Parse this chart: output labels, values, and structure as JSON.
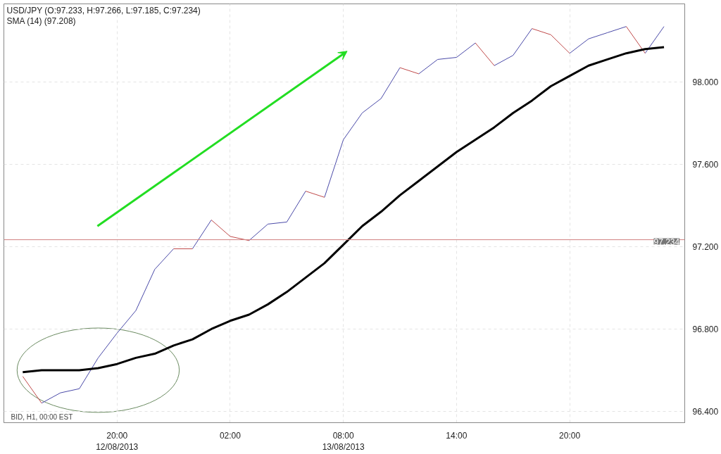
{
  "chart_data": {
    "type": "line",
    "annotations": [
      "USD/JPY (O:97.233, H:97.266, L:97.185, C:97.234)",
      "SMA (14) (97.208)",
      "BID, H1, 00:00 EST"
    ],
    "x": [
      "2013-08-12T15:00",
      "2013-08-12T16:00",
      "2013-08-12T17:00",
      "2013-08-12T18:00",
      "2013-08-12T19:00",
      "2013-08-12T20:00",
      "2013-08-12T21:00",
      "2013-08-12T22:00",
      "2013-08-12T23:00",
      "2013-08-13T00:00",
      "2013-08-13T01:00",
      "2013-08-13T02:00",
      "2013-08-13T03:00",
      "2013-08-13T04:00",
      "2013-08-13T05:00",
      "2013-08-13T06:00",
      "2013-08-13T07:00",
      "2013-08-13T08:00",
      "2013-08-13T09:00",
      "2013-08-13T10:00",
      "2013-08-13T11:00",
      "2013-08-13T12:00",
      "2013-08-13T13:00",
      "2013-08-13T14:00",
      "2013-08-13T15:00",
      "2013-08-13T16:00",
      "2013-08-13T17:00",
      "2013-08-13T18:00",
      "2013-08-13T19:00",
      "2013-08-13T20:00",
      "2013-08-13T21:00",
      "2013-08-13T22:00",
      "2013-08-13T23:00",
      "2013-08-14T00:00",
      "2013-08-14T01:00"
    ],
    "series": [
      {
        "color": "#4a4aa8",
        "x": [
          "2013-08-12T16:00",
          "2013-08-12T17:00",
          "2013-08-12T18:00",
          "2013-08-12T19:00",
          "2013-08-12T20:00",
          "2013-08-12T21:00",
          "2013-08-12T22:00",
          "2013-08-12T23:00",
          "2013-08-12T23:30",
          "2013-08-13T00:00",
          "2013-08-13T01:00",
          "2013-08-13T01:30",
          "2013-08-13T03:00",
          "2013-08-13T04:00",
          "2013-08-13T05:00",
          "2013-08-13T06:00",
          "2013-08-13T06:30",
          "2013-08-13T07:00",
          "2013-08-13T08:00",
          "2013-08-13T09:00",
          "2013-08-13T10:00",
          "2013-08-13T11:00",
          "2013-08-13T11:30",
          "2013-08-13T12:00",
          "2013-08-13T13:00",
          "2013-08-13T14:00",
          "2013-08-13T15:00",
          "2013-08-13T15:30",
          "2013-08-13T16:00",
          "2013-08-13T17:00",
          "2013-08-13T18:00",
          "2013-08-13T18:30",
          "2013-08-13T20:00",
          "2013-08-13T21:00",
          "2013-08-13T22:00",
          "2013-08-13T23:00",
          "2013-08-13T23:30",
          "2013-08-14T00:00",
          "2013-08-14T01:00"
        ],
        "values": [
          96.44,
          96.49,
          96.51,
          96.66,
          96.78,
          96.89,
          97.09,
          97.19,
          null,
          97.19,
          97.33,
          null,
          97.23,
          97.31,
          97.32,
          97.47,
          null,
          97.44,
          97.72,
          97.85,
          97.92,
          98.07,
          null,
          98.04,
          98.11,
          98.12,
          98.19,
          null,
          98.08,
          98.13,
          98.26,
          null,
          98.14,
          98.21,
          98.24,
          98.27,
          null,
          98.14,
          98.27
        ]
      },
      {
        "color": "#c04a4a",
        "x": [
          "2013-08-12T15:00",
          "2013-08-12T16:00",
          "2013-08-12T16:30",
          "2013-08-12T23:00",
          "2013-08-13T00:00",
          "2013-08-13T00:30",
          "2013-08-13T01:00",
          "2013-08-13T02:00",
          "2013-08-13T03:00",
          "2013-08-13T03:30",
          "2013-08-13T06:00",
          "2013-08-13T07:00",
          "2013-08-13T07:30",
          "2013-08-13T11:00",
          "2013-08-13T12:00",
          "2013-08-13T12:30",
          "2013-08-13T15:00",
          "2013-08-13T16:00",
          "2013-08-13T16:30",
          "2013-08-13T18:00",
          "2013-08-13T19:00",
          "2013-08-13T20:00",
          "2013-08-13T20:30",
          "2013-08-13T23:00",
          "2013-08-14T00:00"
        ],
        "values": [
          96.57,
          96.44,
          null,
          97.19,
          97.19,
          null,
          97.33,
          97.25,
          97.23,
          null,
          97.47,
          97.44,
          null,
          98.07,
          98.04,
          null,
          98.19,
          98.08,
          null,
          98.26,
          98.23,
          98.14,
          null,
          98.27,
          98.14
        ]
      },
      {
        "color": "#000000",
        "values": [
          96.59,
          96.6,
          96.6,
          96.6,
          96.61,
          96.63,
          96.66,
          96.68,
          96.72,
          96.75,
          96.8,
          96.84,
          96.87,
          96.92,
          96.98,
          97.05,
          97.12,
          97.21,
          97.3,
          97.37,
          97.45,
          97.52,
          97.59,
          97.66,
          97.72,
          97.78,
          97.85,
          97.91,
          97.98,
          98.03,
          98.08,
          98.11,
          98.14,
          98.16,
          98.17
        ]
      }
    ],
    "xlim": [
      "2013-08-12T14:00",
      "2013-08-14T02:06"
    ],
    "xticks": [
      {
        "value": "2013-08-12T20:00",
        "label": "20:00\n12/08/2013"
      },
      {
        "value": "2013-08-13T02:00",
        "label": "02:00"
      },
      {
        "value": "2013-08-13T08:00",
        "label": "08:00\n13/08/2013"
      },
      {
        "value": "2013-08-13T14:00",
        "label": "14:00"
      },
      {
        "value": "2013-08-13T20:00",
        "label": "20:00"
      }
    ],
    "ylim": [
      96.345,
      98.38
    ],
    "yticks": [
      {
        "value": 96.4,
        "label": "96.400"
      },
      {
        "value": 96.8,
        "label": "96.800"
      },
      {
        "value": 97.2,
        "label": "97.200"
      },
      {
        "value": 97.6,
        "label": "97.600"
      },
      {
        "value": 98.0,
        "label": "98.000"
      }
    ],
    "ref_lines": [
      {
        "axis": "y",
        "value": 97.234,
        "label": "97.234",
        "color": "#d08080"
      }
    ],
    "grid": true,
    "marker": "none",
    "line_style": "solid"
  }
}
